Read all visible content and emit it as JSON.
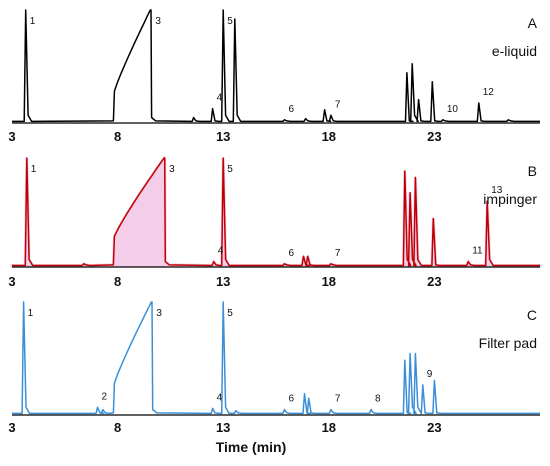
{
  "chart_data": {
    "type": "line",
    "xlabel": "Time (min)",
    "xlim": [
      3,
      28
    ],
    "x_ticks": [
      3,
      8,
      13,
      18,
      23
    ],
    "panels": [
      {
        "letter": "A",
        "name": "e-liquid",
        "color": "#000000",
        "fill": "",
        "peaks": [
          {
            "label": "1",
            "t": 3.65,
            "h": 1.0
          },
          {
            "label": "",
            "t": 11.6,
            "h": 0.04
          },
          {
            "label": "4",
            "t": 12.5,
            "h": 0.12
          },
          {
            "label": "5",
            "t": 13.0,
            "h": 1.0
          },
          {
            "label": "",
            "t": 13.55,
            "h": 0.92
          },
          {
            "label": "6",
            "t": 15.9,
            "h": 0.02
          },
          {
            "label": "",
            "t": 16.9,
            "h": 0.03
          },
          {
            "label": "",
            "t": 17.8,
            "h": 0.11
          },
          {
            "label": "7",
            "t": 18.1,
            "h": 0.06
          },
          {
            "label": "",
            "t": 21.7,
            "h": 0.44
          },
          {
            "label": "",
            "t": 21.95,
            "h": 0.52
          },
          {
            "label": "",
            "t": 22.25,
            "h": 0.2
          },
          {
            "label": "",
            "t": 22.9,
            "h": 0.36
          },
          {
            "label": "10",
            "t": 23.4,
            "h": 0.02
          },
          {
            "label": "12",
            "t": 25.1,
            "h": 0.17
          },
          {
            "label": "",
            "t": 26.5,
            "h": 0.02
          }
        ],
        "ramp": {
          "label": "3",
          "t_start": 7.8,
          "t_end": 9.55,
          "h_start": 0.5,
          "h_end": 1.0
        }
      },
      {
        "letter": "B",
        "name": "impinger",
        "color": "#c00000",
        "fill": "#f3c6e6",
        "peaks": [
          {
            "label": "1",
            "t": 3.7,
            "h": 1.0
          },
          {
            "label": "",
            "t": 6.4,
            "h": 0.02
          },
          {
            "label": "4",
            "t": 12.55,
            "h": 0.04
          },
          {
            "label": "5",
            "t": 13.0,
            "h": 1.0
          },
          {
            "label": "6",
            "t": 15.9,
            "h": 0.02
          },
          {
            "label": "",
            "t": 16.8,
            "h": 0.09
          },
          {
            "label": "",
            "t": 17.0,
            "h": 0.09
          },
          {
            "label": "7",
            "t": 18.1,
            "h": 0.02
          },
          {
            "label": "",
            "t": 21.6,
            "h": 0.88
          },
          {
            "label": "",
            "t": 21.85,
            "h": 0.68
          },
          {
            "label": "",
            "t": 22.1,
            "h": 0.82
          },
          {
            "label": "",
            "t": 22.95,
            "h": 0.44
          },
          {
            "label": "11",
            "t": 24.6,
            "h": 0.04
          },
          {
            "label": "13",
            "t": 25.5,
            "h": 0.6
          }
        ],
        "ramp": {
          "label": "3",
          "t_start": 7.8,
          "t_end": 10.2,
          "h_start": 0.5,
          "h_end": 1.0
        }
      },
      {
        "letter": "C",
        "name": "Filter pad",
        "color": "#3a8fd8",
        "fill": "",
        "peaks": [
          {
            "label": "1",
            "t": 3.55,
            "h": 1.0
          },
          {
            "label": "2",
            "t": 7.05,
            "h": 0.06
          },
          {
            "label": "",
            "t": 7.3,
            "h": 0.04
          },
          {
            "label": "4",
            "t": 12.5,
            "h": 0.05
          },
          {
            "label": "5",
            "t": 13.0,
            "h": 1.0
          },
          {
            "label": "",
            "t": 13.6,
            "h": 0.03
          },
          {
            "label": "6",
            "t": 15.9,
            "h": 0.04
          },
          {
            "label": "",
            "t": 16.85,
            "h": 0.18
          },
          {
            "label": "",
            "t": 17.05,
            "h": 0.14
          },
          {
            "label": "7",
            "t": 18.1,
            "h": 0.04
          },
          {
            "label": "8",
            "t": 20.0,
            "h": 0.04
          },
          {
            "label": "",
            "t": 21.6,
            "h": 0.48
          },
          {
            "label": "",
            "t": 21.85,
            "h": 0.54
          },
          {
            "label": "",
            "t": 22.1,
            "h": 0.54
          },
          {
            "label": "9",
            "t": 22.45,
            "h": 0.26
          },
          {
            "label": "",
            "t": 23.0,
            "h": 0.3
          }
        ],
        "ramp": {
          "label": "3",
          "t_start": 7.8,
          "t_end": 9.6,
          "h_start": 0.5,
          "h_end": 1.0
        }
      }
    ]
  }
}
